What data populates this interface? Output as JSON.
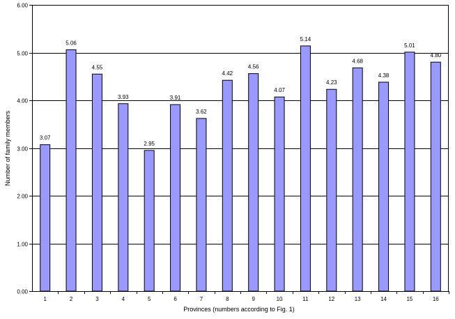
{
  "chart_data": {
    "type": "bar",
    "title": "",
    "xlabel": "Provinces (numbers according to Fig. 1)",
    "ylabel": "Number of family members",
    "categories": [
      "1",
      "2",
      "3",
      "4",
      "5",
      "6",
      "7",
      "8",
      "9",
      "10",
      "11",
      "12",
      "13",
      "14",
      "15",
      "16"
    ],
    "values": [
      3.07,
      5.06,
      4.55,
      3.93,
      2.95,
      3.91,
      3.62,
      4.42,
      4.56,
      4.07,
      5.14,
      4.23,
      4.68,
      4.38,
      5.01,
      4.8
    ],
    "value_labels": [
      "3.07",
      "5.06",
      "4.55",
      "3.93",
      "2.95",
      "3.91",
      "3.62",
      "4.42",
      "4.56",
      "4.07",
      "5.14",
      "4.23",
      "4.68",
      "4.38",
      "5.01",
      "4.80"
    ],
    "yticks": [
      "0.00",
      "1.00",
      "2.00",
      "3.00",
      "4.00",
      "5.00",
      "6.00"
    ],
    "ylim": [
      0,
      6
    ],
    "grid": true,
    "legend": "none",
    "bar_color": "#9999ff",
    "bar_edge_color": "#000000",
    "grid_color": "#000000"
  }
}
